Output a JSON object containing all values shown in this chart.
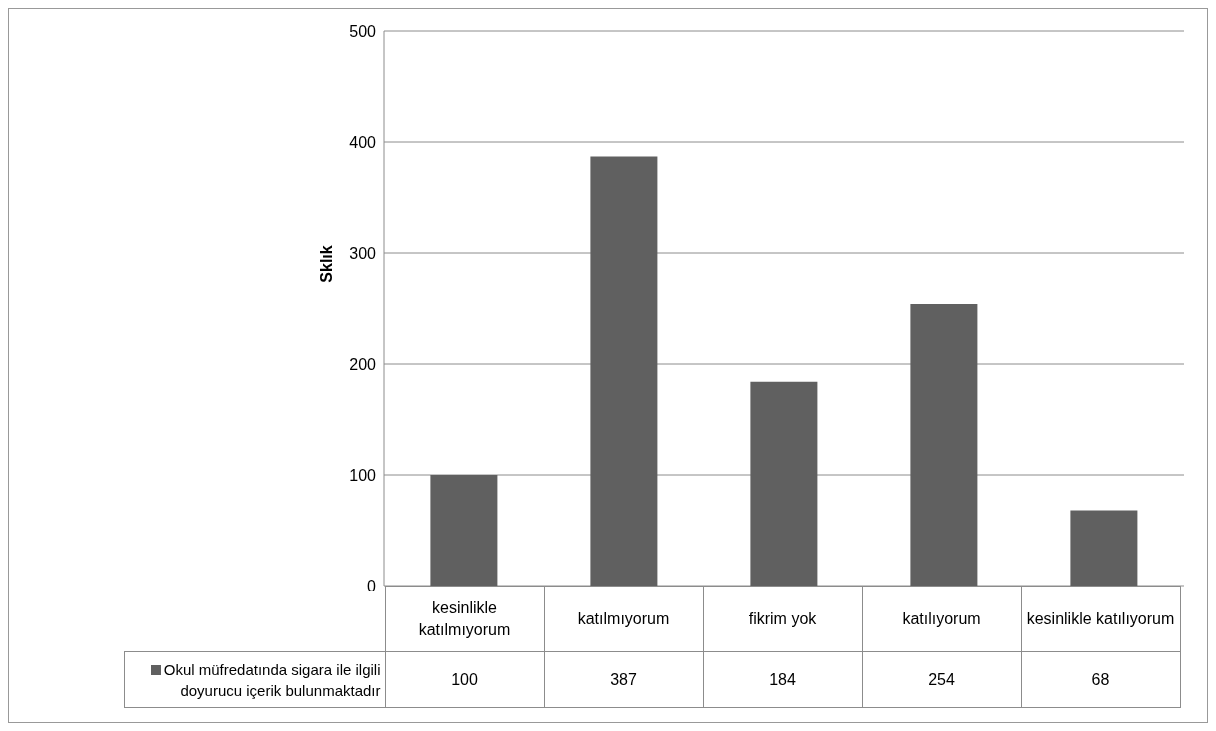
{
  "chart_data": {
    "type": "bar",
    "ylabel": "Sklık",
    "categories": [
      "kesinlikle katılmıyorum",
      "katılmıyorum",
      "fikrim yok",
      "katılıyorum",
      "kesinlikle katılıyorum"
    ],
    "series": [
      {
        "name": "Okul müfredatında sigara ile ilgili doyurucu içerik bulunmaktadır",
        "color": "#606060",
        "values": [
          100,
          387,
          184,
          254,
          68
        ]
      }
    ],
    "ylim": [
      0,
      500
    ],
    "yticks": [
      0,
      100,
      200,
      300,
      400,
      500
    ],
    "grid": "y",
    "legend": "bottom",
    "data_labels": true
  }
}
